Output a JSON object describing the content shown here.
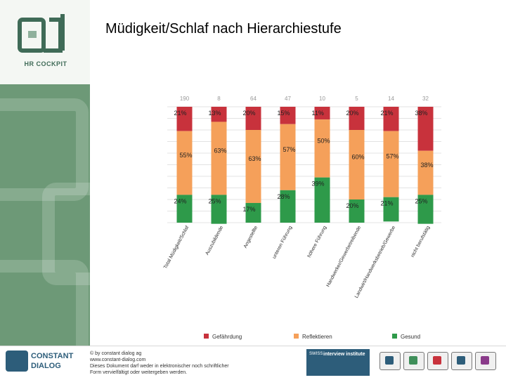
{
  "page": {
    "title": "Müdigkeit/Schlaf nach Hierarchiestufe",
    "sidebar_logo_text": "HR COCKPIT"
  },
  "footer": {
    "brand_line1": "CONSTANT",
    "brand_line2": "DIALOG",
    "copyright_lines": [
      "© by constant dialog ag",
      "www.constant-dialog.com",
      "Dieses Dokument darf weder in elektronischer noch schriftlicher",
      "Form vervielfältigt oder weitergeben werden."
    ],
    "partner_label": "interview institute",
    "partner_small": "SWISS"
  },
  "chart_data": {
    "type": "bar",
    "stacked": true,
    "percent": true,
    "categories": [
      "Total Müdigkeit/Schlaf",
      "Auszubildende",
      "Angestellte",
      "unteren Führung",
      "höhere Führung",
      "Handwerker/Gewerbetreibende",
      "Landwirt/Handwerksbetrieb/Gewerbe",
      "nicht berufstätig"
    ],
    "top_values": [
      "190",
      "8",
      "64",
      "47",
      "10",
      "5",
      "14",
      "32"
    ],
    "series": [
      {
        "name": "Gefährdung",
        "color": "#c8323c",
        "values": [
          21,
          13,
          20,
          15,
          11,
          20,
          21,
          38
        ]
      },
      {
        "name": "Reflektieren",
        "color": "#f5a05a",
        "values": [
          55,
          63,
          63,
          57,
          50,
          60,
          57,
          38
        ]
      },
      {
        "name": "Gesund",
        "color": "#2e9a4a",
        "values": [
          24,
          25,
          17,
          28,
          39,
          20,
          21,
          25
        ]
      }
    ],
    "ylim": [
      0,
      100
    ],
    "legend_position": "bottom",
    "grid": true
  },
  "colors": {
    "brand": "#2d5d7a",
    "sidebar_green": "#5f8f6a"
  }
}
